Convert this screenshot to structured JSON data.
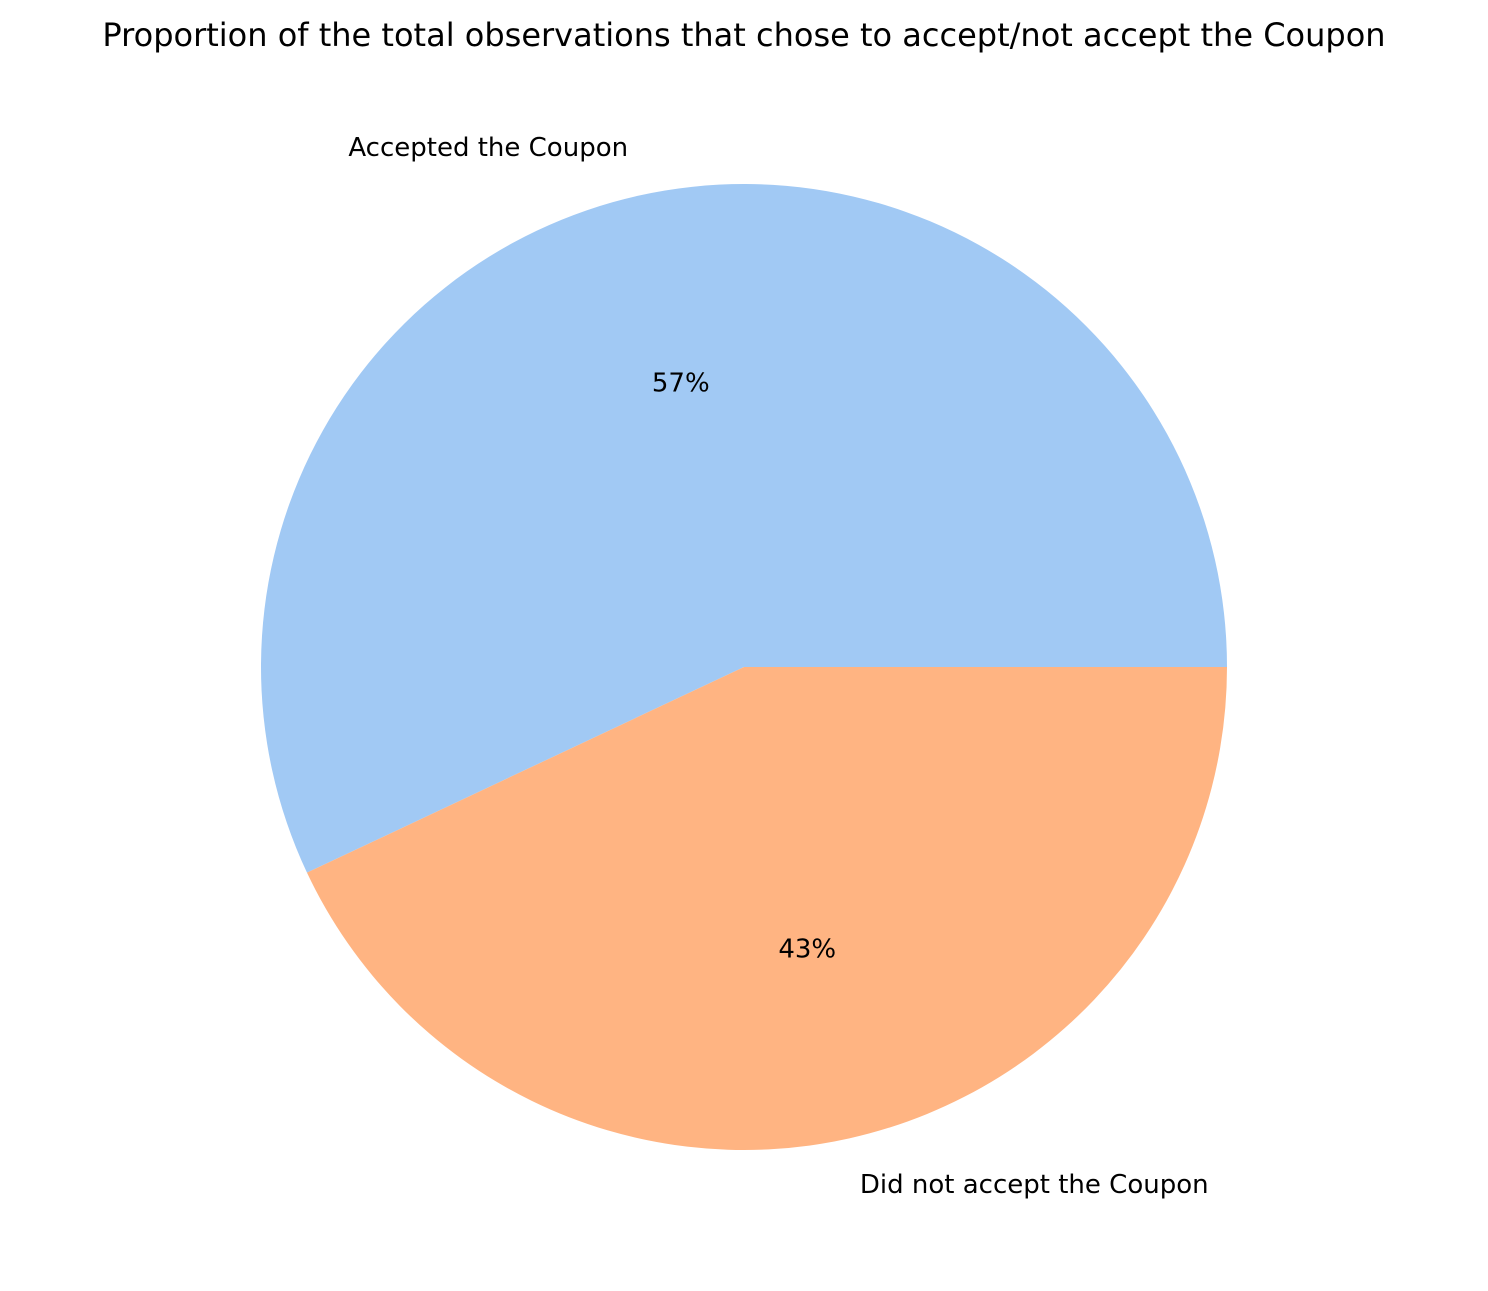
{
  "chart_data": {
    "type": "pie",
    "title": "Proportion of the total observations that chose to accept/not accept the Coupon",
    "slices": [
      {
        "label": "Accepted the Coupon",
        "value": 57,
        "pct_label": "57%",
        "color": "#a1c9f4"
      },
      {
        "label": "Did not accept the Coupon",
        "value": 43,
        "pct_label": "43%",
        "color": "#ffb482"
      }
    ],
    "start_angle": "0° (3 o'clock), counter-clockwise",
    "legend": "none"
  }
}
